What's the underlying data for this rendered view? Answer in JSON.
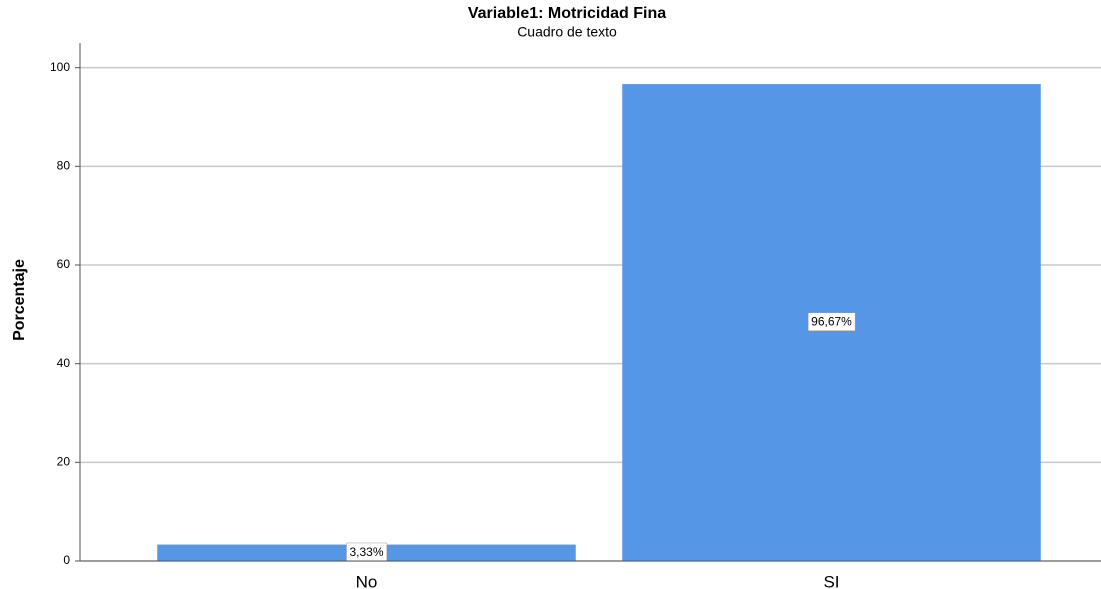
{
  "chart_data": {
    "type": "bar",
    "title": "Variable1: Motricidad Fina",
    "subtitle": "Cuadro de texto",
    "y_label": "Porcentaje",
    "categories": [
      "No",
      "SI"
    ],
    "values": [
      3.33,
      96.67
    ],
    "value_labels": [
      "3,33%",
      "96,67%"
    ],
    "color": "#5596e6",
    "ylim": [
      0,
      105
    ],
    "yticks": [
      0,
      20,
      40,
      60,
      80,
      100
    ],
    "grid": true
  }
}
